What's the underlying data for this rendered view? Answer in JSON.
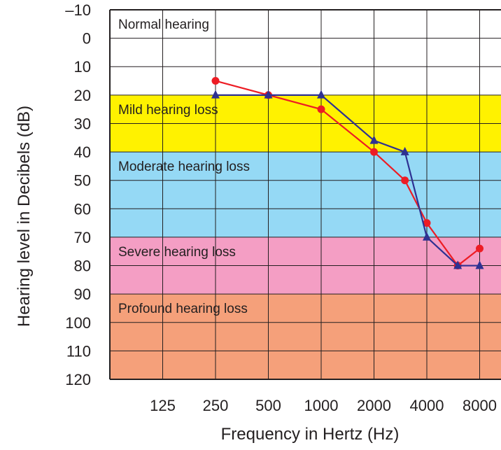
{
  "chart_data": {
    "type": "line",
    "xlabel": "Frequency in Hertz (Hz)",
    "ylabel": "Hearing level in Decibels (dB)",
    "x_ticks": [
      "125",
      "250",
      "500",
      "1000",
      "2000",
      "4000",
      "8000"
    ],
    "y_ticks": [
      "–10",
      "0",
      "10",
      "20",
      "30",
      "40",
      "50",
      "60",
      "70",
      "80",
      "90",
      "100",
      "110",
      "120"
    ],
    "ylim": [
      -10,
      120
    ],
    "y_inverted": true,
    "grid": true,
    "zones": [
      {
        "label": "Normal hearing",
        "from": -10,
        "to": 20,
        "color": "#ffffff"
      },
      {
        "label": "Mild hearing loss",
        "from": 20,
        "to": 40,
        "color": "#fff200"
      },
      {
        "label": "Moderate hearing loss",
        "from": 40,
        "to": 70,
        "color": "#95d9f5"
      },
      {
        "label": "Severe hearing loss",
        "from": 70,
        "to": 90,
        "color": "#f49ec4"
      },
      {
        "label": "Profound hearing loss",
        "from": 90,
        "to": 120,
        "color": "#f5a07a"
      }
    ],
    "series": [
      {
        "marker": "circle",
        "color": "#ed1c24",
        "x": [
          250,
          500,
          1000,
          2000,
          3000,
          4000,
          6000,
          8000
        ],
        "y": [
          15,
          20,
          25,
          40,
          50,
          65,
          80,
          74
        ]
      },
      {
        "marker": "triangle",
        "color": "#2e3192",
        "x": [
          250,
          500,
          1000,
          2000,
          3000,
          4000,
          6000,
          8000
        ],
        "y": [
          20,
          20,
          20,
          36,
          40,
          70,
          80,
          80
        ]
      }
    ]
  }
}
